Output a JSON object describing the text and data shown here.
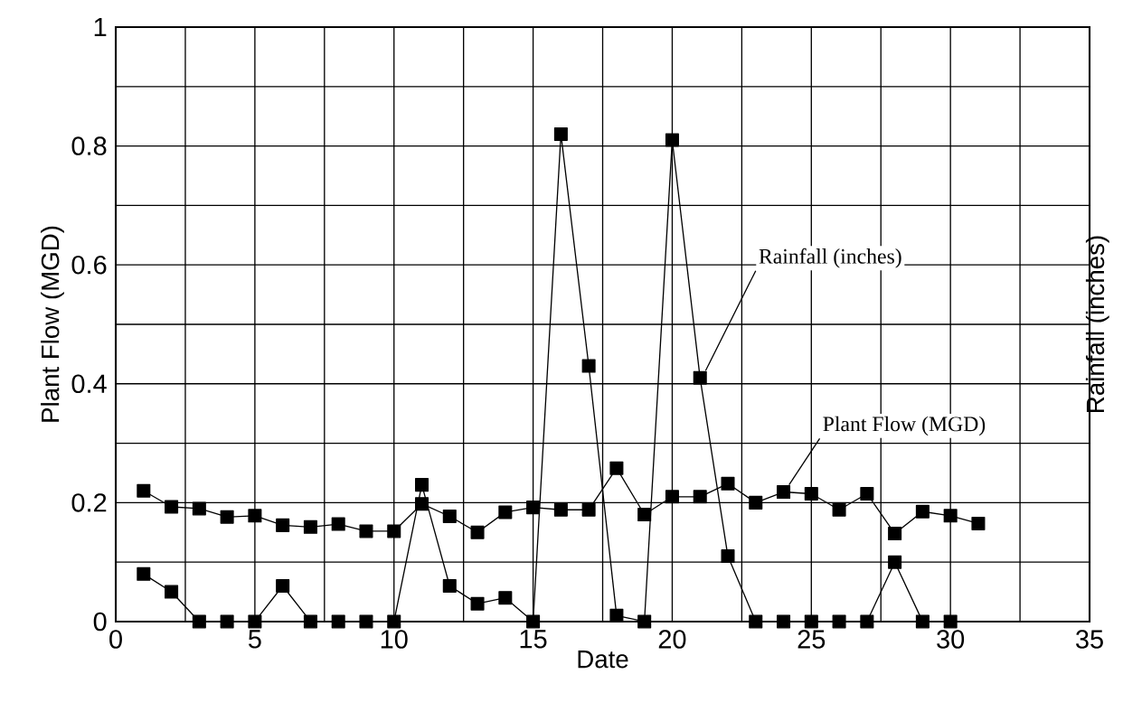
{
  "chart_data": {
    "type": "line",
    "xlabel": "Date",
    "ylabel": "Plant Flow (MGD)",
    "y2label": "Rainfall (inches)",
    "x": [
      1,
      2,
      3,
      4,
      5,
      6,
      7,
      8,
      9,
      10,
      11,
      12,
      13,
      14,
      15,
      16,
      17,
      18,
      19,
      20,
      21,
      22,
      23,
      24,
      25,
      26,
      27,
      28,
      29,
      30,
      31
    ],
    "series": [
      {
        "name": "Plant Flow (MGD)",
        "color": "#000000",
        "values": [
          0.22,
          0.193,
          0.19,
          0.176,
          0.178,
          0.162,
          0.159,
          0.164,
          0.152,
          0.152,
          0.198,
          0.177,
          0.15,
          0.184,
          0.192,
          0.188,
          0.188,
          0.258,
          0.18,
          0.21,
          0.21,
          0.232,
          0.2,
          0.218,
          0.215,
          0.188,
          0.215,
          0.148,
          0.185,
          0.178,
          0.165
        ]
      },
      {
        "name": "Rainfall (inches)",
        "color": "#000000",
        "x": [
          1,
          2,
          3,
          4,
          5,
          6,
          7,
          8,
          9,
          10,
          11,
          12,
          13,
          14,
          15,
          16,
          17,
          18,
          19,
          20,
          21,
          22,
          23,
          24,
          25,
          26,
          27,
          28,
          29,
          30
        ],
        "values": [
          0.08,
          0.05,
          0,
          0,
          0,
          0.06,
          0,
          0,
          0,
          0,
          0.23,
          0.06,
          0.03,
          0.04,
          0,
          0.82,
          0.43,
          0.01,
          0,
          0.81,
          0.41,
          0.11,
          0,
          0,
          0,
          0,
          0,
          0.1,
          0,
          0
        ]
      }
    ],
    "xlim": [
      0,
      35
    ],
    "ylim": [
      0,
      1
    ],
    "xticks": [
      0,
      {
        "value": 2.5,
        "label": null
      },
      5,
      {
        "value": 7.5,
        "label": null
      },
      10,
      {
        "value": 12.5,
        "label": null
      },
      15,
      {
        "value": 17.5,
        "label": null
      },
      20,
      {
        "value": 22.5,
        "label": null
      },
      25,
      {
        "value": 27.5,
        "label": null
      },
      30,
      {
        "value": 32.5,
        "label": null
      },
      35
    ],
    "yticks": [
      0,
      {
        "value": 0.1,
        "label": null
      },
      0.2,
      {
        "value": 0.3,
        "label": null
      },
      0.4,
      {
        "value": 0.5,
        "label": null
      },
      0.6,
      {
        "value": 0.7,
        "label": null
      },
      0.8,
      {
        "value": 0.9,
        "label": null
      },
      1
    ],
    "grid": true,
    "legend": false,
    "marker": "square",
    "line_style": "solid"
  }
}
